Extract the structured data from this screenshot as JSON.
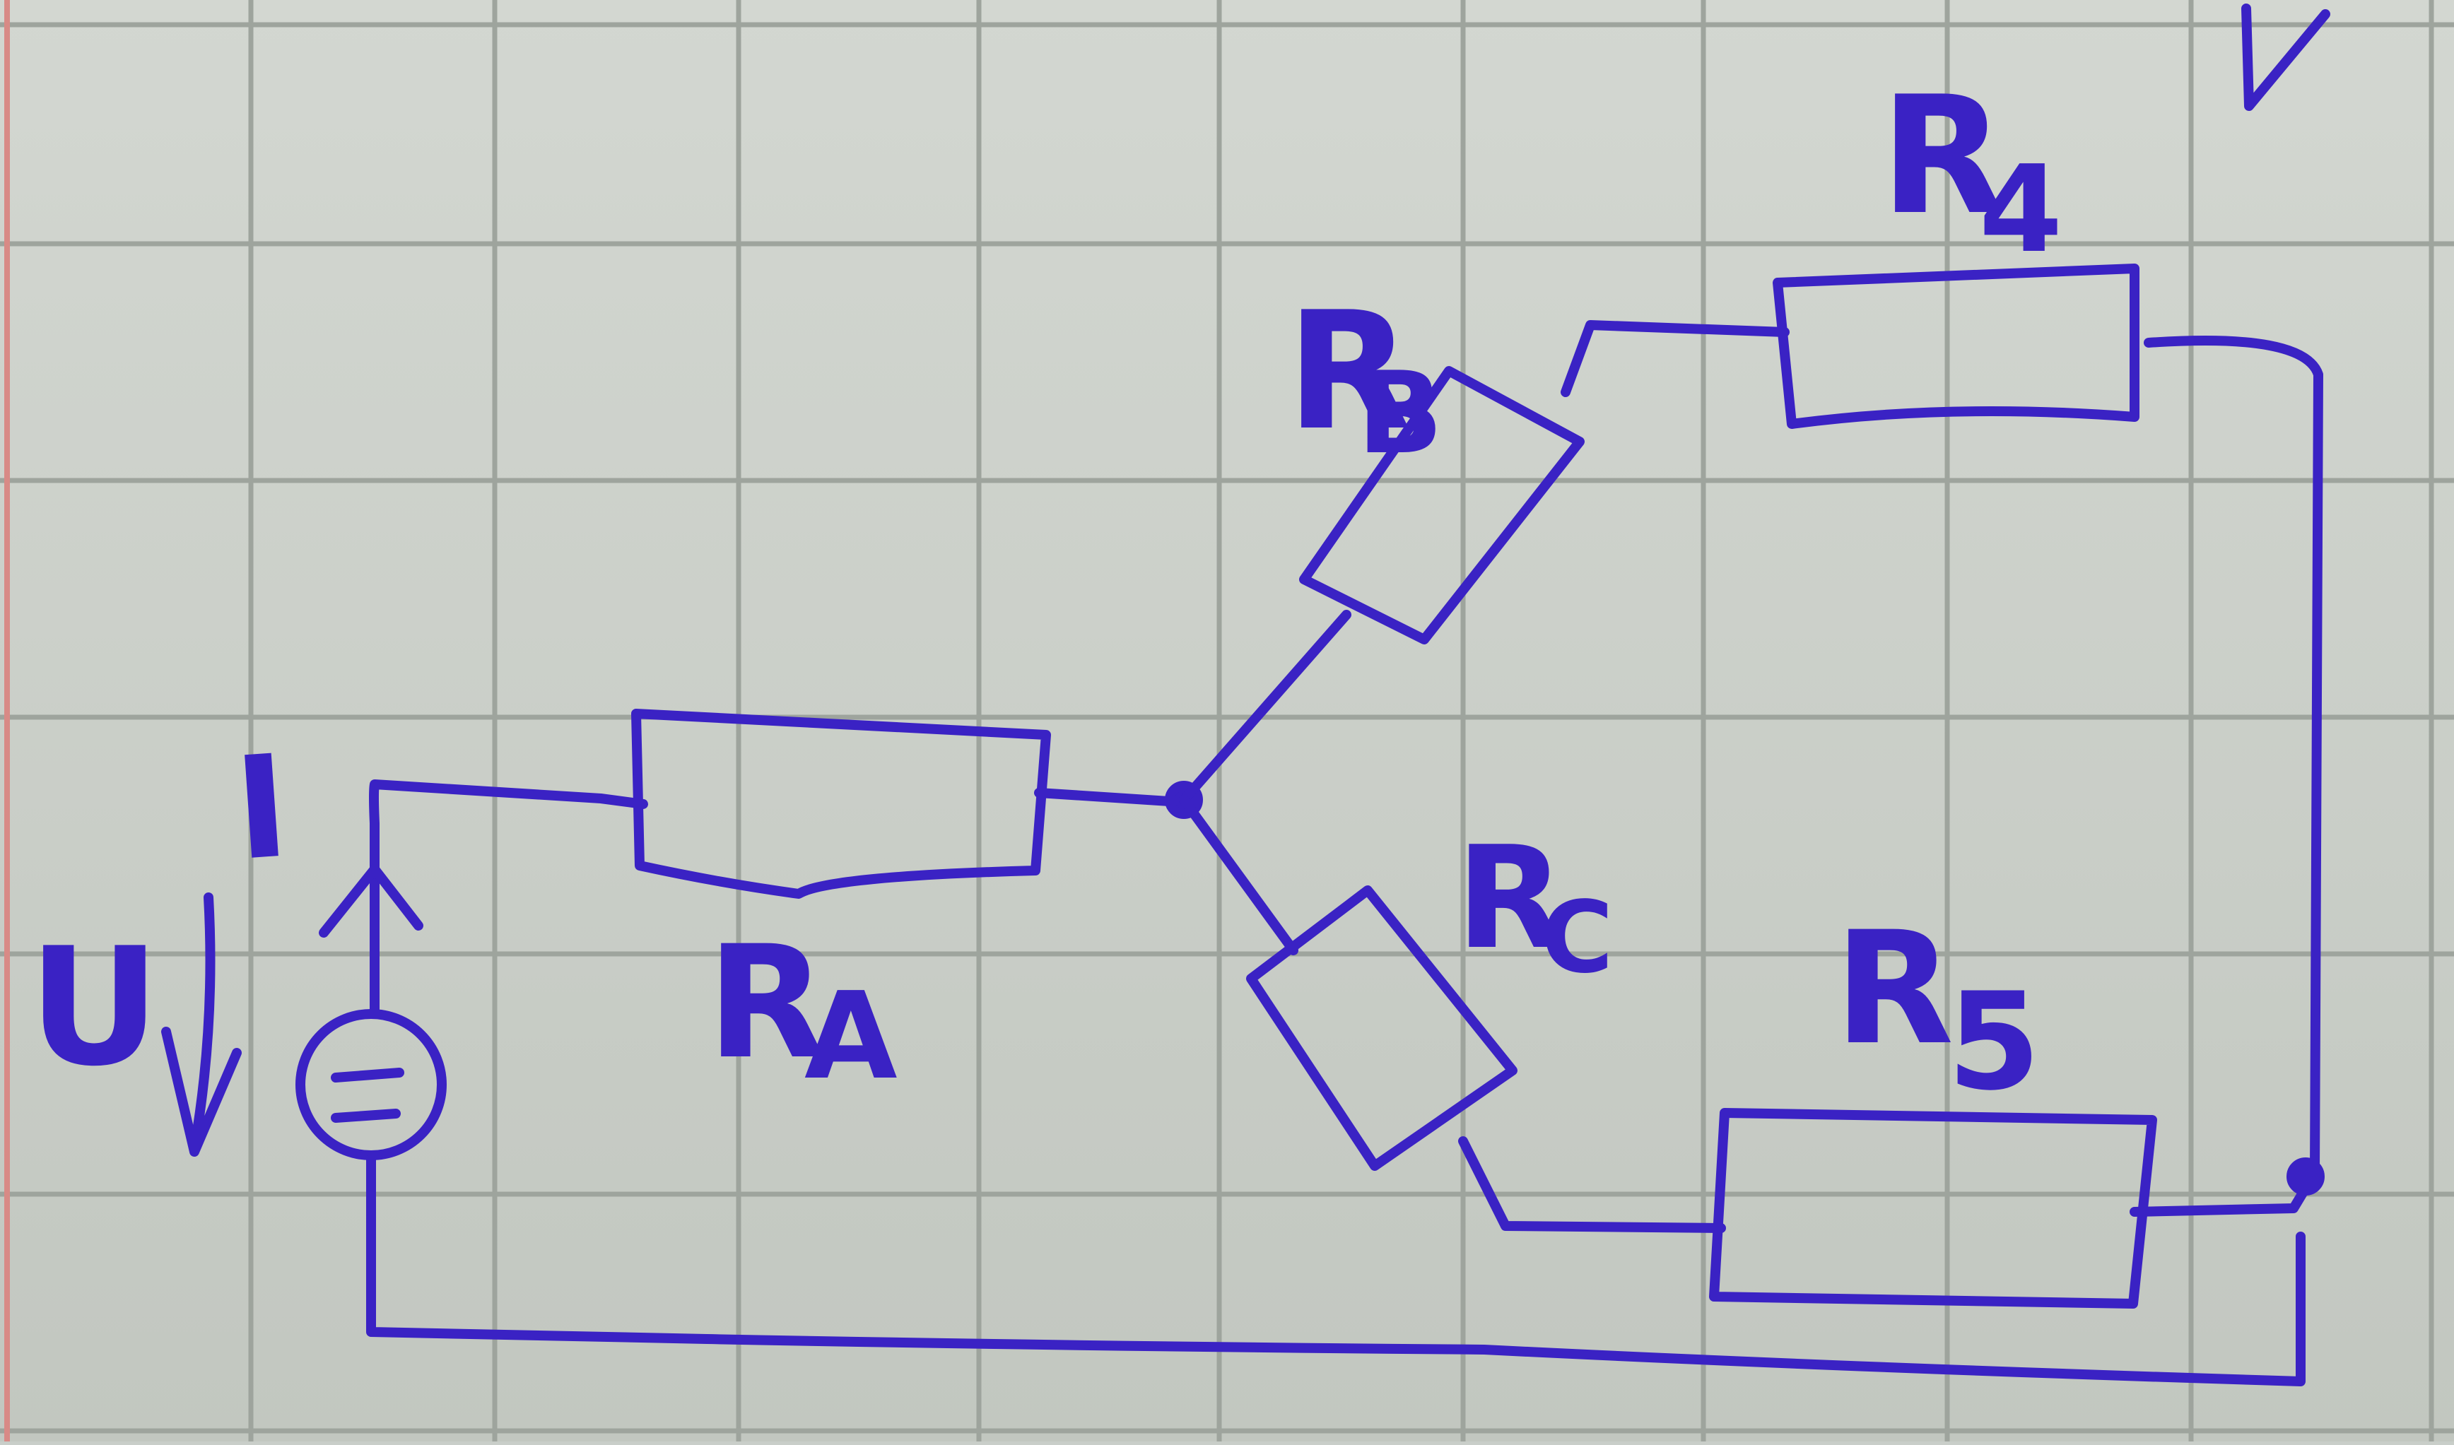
{
  "colors": {
    "paper": "#cfd3cd",
    "paper_shadow": "#b8bdb6",
    "grid": "#9ea49d",
    "margin_line": "#d88a86",
    "ink": "#3a22c4"
  },
  "labels": {
    "current": "I",
    "voltage": "U",
    "ra": {
      "main": "R",
      "sub": "A"
    },
    "rb": {
      "main": "R",
      "sub": "B"
    },
    "rc": {
      "main": "R",
      "sub": "C"
    },
    "r4": {
      "main": "R",
      "sub": "4"
    },
    "r5": {
      "main": "R",
      "sub": "5"
    }
  }
}
